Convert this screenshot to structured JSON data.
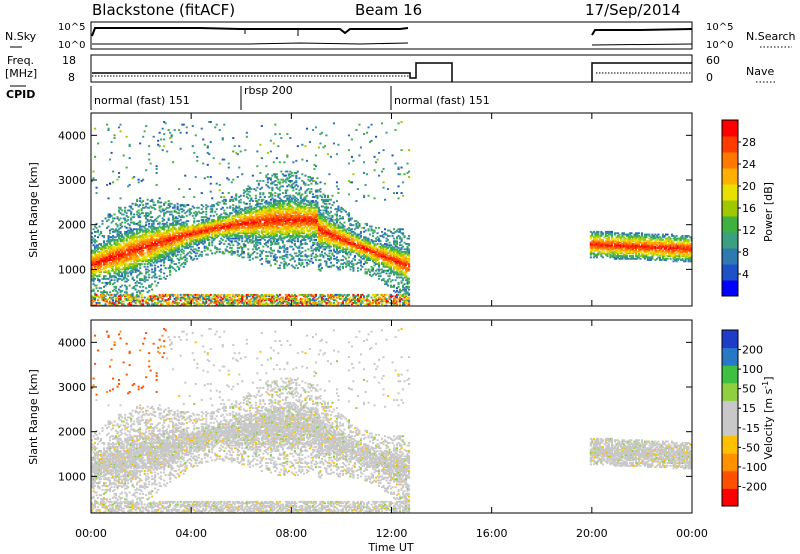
{
  "header": {
    "title": "Blackstone (fitACF)",
    "beam": "Beam 16",
    "date": "17/Sep/2014"
  },
  "summary_panels": {
    "nsky_label": "N.Sky",
    "nsearch_label": "N.Search",
    "noise_ticks": [
      "10^5",
      "10^0"
    ],
    "freq_label_top": "Freq.",
    "freq_label_unit": "[MHz]",
    "freq_ticks": [
      "18",
      "8"
    ],
    "nave_label": "Nave",
    "nave_ticks": [
      "60",
      "0"
    ],
    "cpid_label": "CPID",
    "cpid_modes": [
      {
        "name": "normal (fast) 151",
        "start_hour": 0.0,
        "end_hour": 6.0
      },
      {
        "name": "rbsp 200",
        "start_hour": 6.0,
        "end_hour": 12.5
      },
      {
        "name": "normal (fast) 151",
        "start_hour": 12.5,
        "end_hour": 24.0
      }
    ]
  },
  "colorbars": {
    "power": {
      "label": "Power [dB]",
      "ticks": [
        "28",
        "24",
        "20",
        "16",
        "12",
        "8",
        "4"
      ],
      "colors": [
        "#0000ff",
        "#1e50c8",
        "#2e7ab0",
        "#3aa080",
        "#40b040",
        "#a0c800",
        "#e8e000",
        "#ffb000",
        "#ff7800",
        "#ff3c00",
        "#ff0000"
      ]
    },
    "velocity": {
      "label_main": "Velocity [m s",
      "label_sup": "-1",
      "label_end": "]",
      "ticks": [
        "200",
        "100",
        "50",
        "15",
        "-15",
        "-50",
        "-100",
        "-200"
      ],
      "colors": [
        "#1e3cc8",
        "#2878c8",
        "#40c040",
        "#90d040",
        "#c8c8c8",
        "#c8c8c8",
        "#ffc000",
        "#ff9000",
        "#ff5000",
        "#ff0000"
      ]
    }
  },
  "chart_data": {
    "type": "heatmap",
    "title": "Blackstone (fitACF)",
    "xlabel": "Time UT",
    "ylabel": "Slant Range [km]",
    "x_ticks": [
      "00:00",
      "04:00",
      "08:00",
      "12:00",
      "16:00",
      "20:00",
      "00:00"
    ],
    "x_range_hours": [
      0,
      24
    ],
    "y_ticks": [
      "1000",
      "2000",
      "3000",
      "4000"
    ],
    "y_range_km": [
      180,
      4500
    ],
    "data_gap_hours": [
      12.7,
      19.9
    ],
    "panels": [
      {
        "name": "Power [dB]",
        "range": [
          0,
          30
        ],
        "typical_band_km": [
          1000,
          2200
        ]
      },
      {
        "name": "Velocity [m s-1]",
        "range": [
          -250,
          250
        ],
        "typical_band_km": [
          1000,
          2200
        ]
      }
    ]
  }
}
